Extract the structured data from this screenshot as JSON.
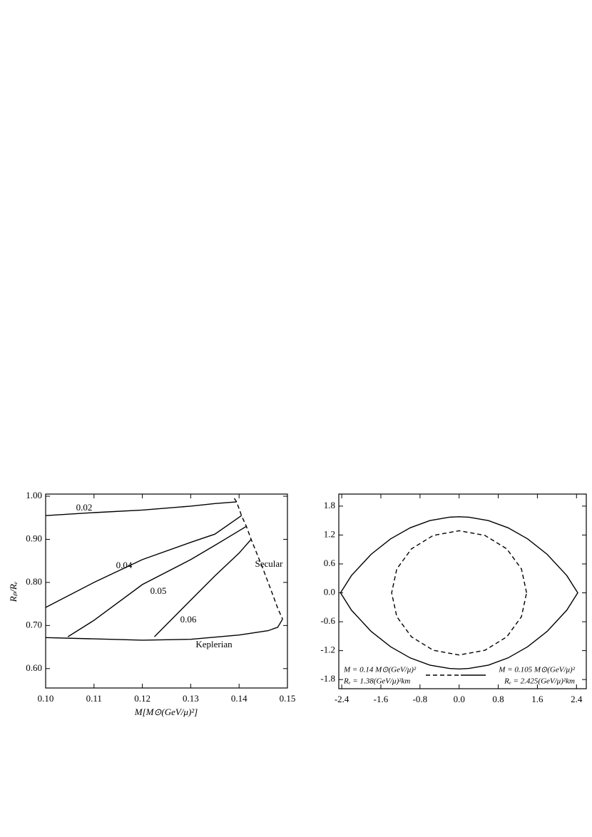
{
  "chart_data": [
    {
      "type": "line",
      "xlabel": "M[M⊙(GeV/μ)²]",
      "ylabel": "Rₚ/Rₑ",
      "xlim": [
        0.1,
        0.15
      ],
      "ylim": [
        0.555,
        1.005
      ],
      "xticks": [
        {
          "value": 0.1,
          "label": "0.10"
        },
        {
          "value": 0.11,
          "label": "0.11"
        },
        {
          "value": 0.12,
          "label": "0.12"
        },
        {
          "value": 0.13,
          "label": "0.13"
        },
        {
          "value": 0.14,
          "label": "0.14"
        },
        {
          "value": 0.15,
          "label": "0.15"
        }
      ],
      "yticks": [
        {
          "value": 0.6,
          "label": "0.60"
        },
        {
          "value": 0.7,
          "label": "0.70"
        },
        {
          "value": 0.8,
          "label": "0.80"
        },
        {
          "value": 0.9,
          "label": "0.90"
        },
        {
          "value": 1.0,
          "label": "1.00"
        }
      ],
      "series": [
        {
          "name": "0.02",
          "color": "#000000",
          "dashed": false,
          "x": [
            0.1,
            0.11,
            0.12,
            0.13,
            0.135,
            0.1395
          ],
          "values": [
            0.955,
            0.962,
            0.968,
            0.977,
            0.983,
            0.987
          ]
        },
        {
          "name": "0.04",
          "color": "#000000",
          "dashed": false,
          "x": [
            0.1,
            0.11,
            0.12,
            0.13,
            0.135,
            0.1405
          ],
          "values": [
            0.742,
            0.8,
            0.853,
            0.893,
            0.912,
            0.955
          ]
        },
        {
          "name": "0.05",
          "color": "#000000",
          "dashed": false,
          "x": [
            0.1046,
            0.11,
            0.12,
            0.13,
            0.135,
            0.1415
          ],
          "values": [
            0.674,
            0.712,
            0.795,
            0.853,
            0.886,
            0.93
          ]
        },
        {
          "name": "0.06",
          "color": "#000000",
          "dashed": false,
          "x": [
            0.1225,
            0.13,
            0.135,
            0.14,
            0.1425
          ],
          "values": [
            0.674,
            0.759,
            0.815,
            0.868,
            0.9
          ]
        },
        {
          "name": "Secular",
          "color": "#000000",
          "dashed": true,
          "x": [
            0.139,
            0.1395,
            0.1405,
            0.1415,
            0.1425,
            0.145,
            0.147,
            0.148,
            0.149
          ],
          "values": [
            0.995,
            0.987,
            0.955,
            0.93,
            0.9,
            0.83,
            0.77,
            0.74,
            0.715
          ]
        },
        {
          "name": "Keplerian",
          "color": "#000000",
          "dashed": false,
          "x": [
            0.1,
            0.11,
            0.12,
            0.13,
            0.14,
            0.146,
            0.148,
            0.149
          ],
          "values": [
            0.672,
            0.669,
            0.666,
            0.668,
            0.678,
            0.688,
            0.696,
            0.715
          ]
        }
      ]
    },
    {
      "type": "line",
      "xlim": [
        -2.46,
        2.6
      ],
      "ylim": [
        -1.99,
        2.05
      ],
      "xticks": [
        -2.4,
        -1.6,
        -0.8,
        {
          "value": 0,
          "label": "0.0"
        },
        0.8,
        1.6,
        2.4
      ],
      "yticks": [
        1.8,
        1.2,
        0.6,
        {
          "value": 0,
          "label": "0.0"
        },
        -0.6,
        -1.2,
        -1.8
      ],
      "series": [
        {
          "name": "M = 0.14 M⊙(GeV/μ)²",
          "name2": "Rₑ = 1.38(GeV/μ)²km",
          "color": "#000000",
          "dashed": true,
          "x": [
            1.38,
            1.275,
            0.976,
            0.528,
            0,
            -0.528,
            -0.976,
            -1.275,
            -1.38,
            -1.275,
            -0.976,
            -0.528,
            0,
            0.528,
            0.976,
            1.275,
            1.38
          ],
          "values": [
            0,
            0.494,
            0.912,
            1.192,
            1.29,
            1.192,
            0.912,
            0.494,
            0,
            -0.494,
            -0.912,
            -1.192,
            -1.29,
            -1.192,
            -0.912,
            -0.494,
            0
          ]
        },
        {
          "name": "M = 0.105 M⊙(GeV/μ)²",
          "name2": "Rₑ = 2.425(GeV/μ)²km",
          "color": "#000000",
          "dashed": false,
          "x": [
            -2.425,
            -2.2,
            -1.8,
            -1.4,
            -1.0,
            -0.6,
            -0.2,
            0,
            0.2,
            0.6,
            1.0,
            1.4,
            1.8,
            2.2,
            2.425,
            2.2,
            1.8,
            1.4,
            1.0,
            0.6,
            0.2,
            0,
            -0.2,
            -0.6,
            -1.0,
            -1.4,
            -1.8,
            -2.2,
            -2.425
          ],
          "values": [
            0,
            0.36,
            0.8,
            1.12,
            1.35,
            1.5,
            1.57,
            1.58,
            1.57,
            1.5,
            1.35,
            1.12,
            0.8,
            0.36,
            0,
            -0.36,
            -0.8,
            -1.12,
            -1.35,
            -1.5,
            -1.57,
            -1.58,
            -1.57,
            -1.5,
            -1.35,
            -1.12,
            -0.8,
            -0.36,
            0
          ]
        }
      ]
    }
  ]
}
